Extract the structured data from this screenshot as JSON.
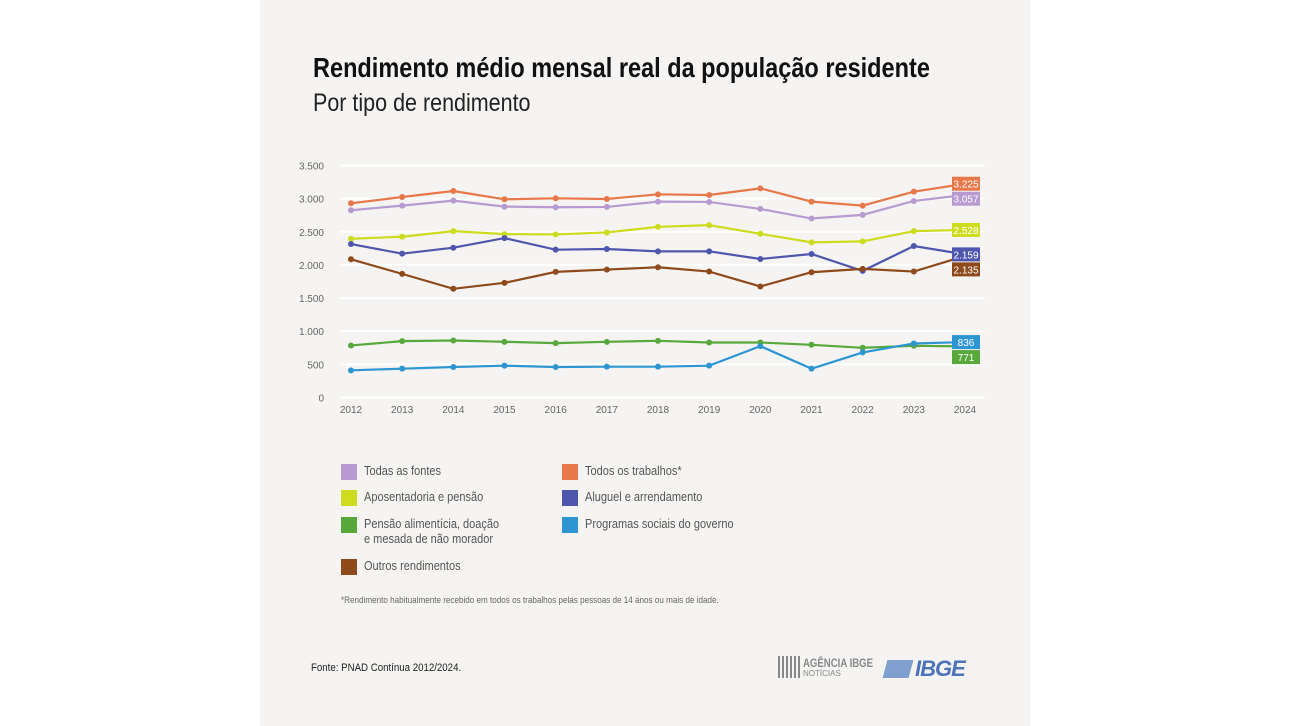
{
  "chart_data": {
    "type": "line",
    "title": "Rendimento médio mensal real da população residente",
    "subtitle": "Por tipo de rendimento",
    "xlabel": "",
    "ylabel": "",
    "x": [
      "2012",
      "2013",
      "2014",
      "2015",
      "2016",
      "2017",
      "2018",
      "2019",
      "2020",
      "2021",
      "2022",
      "2023",
      "2024"
    ],
    "ylim": [
      0,
      3500
    ],
    "yticks": [
      0,
      500,
      1000,
      1500,
      2000,
      2500,
      3000,
      3500
    ],
    "ytick_labels": [
      "0",
      "500",
      "1.000",
      "1.500",
      "2.000",
      "2.500",
      "3.000",
      "3.500"
    ],
    "grid": true,
    "legend_position": "bottom",
    "series": [
      {
        "name": "Todas as fontes",
        "color": "#b79bd0",
        "values": [
          2825,
          2895,
          2970,
          2880,
          2870,
          2875,
          2955,
          2950,
          2845,
          2700,
          2755,
          2965,
          3057
        ],
        "end_label": "3.057"
      },
      {
        "name": "Todos os trabalhos*",
        "color": "#e8784a",
        "values": [
          2930,
          3025,
          3115,
          2990,
          3005,
          2995,
          3065,
          3055,
          3155,
          2955,
          2895,
          3105,
          3225
        ],
        "end_label": "3.225"
      },
      {
        "name": "Aposentadoria e pensão",
        "color": "#cddc1e",
        "values": [
          2395,
          2425,
          2510,
          2465,
          2460,
          2490,
          2575,
          2600,
          2470,
          2340,
          2355,
          2510,
          2528
        ],
        "end_label": "2.528"
      },
      {
        "name": "Aluguel e arrendamento",
        "color": "#4e57ad",
        "values": [
          2315,
          2170,
          2260,
          2405,
          2230,
          2240,
          2205,
          2205,
          2090,
          2165,
          1910,
          2285,
          2159
        ],
        "end_label": "2.159"
      },
      {
        "name": "Pensão alimentícia, doação e mesada de não morador",
        "color": "#58a83c",
        "values": [
          785,
          850,
          860,
          840,
          820,
          840,
          855,
          830,
          830,
          795,
          750,
          780,
          771
        ],
        "end_label": "771"
      },
      {
        "name": "Programas sociais do governo",
        "color": "#2d96d2",
        "values": [
          410,
          435,
          460,
          480,
          460,
          465,
          465,
          480,
          775,
          435,
          680,
          815,
          836
        ],
        "end_label": "836"
      },
      {
        "name": "Outros rendimentos",
        "color": "#8f4a1c",
        "values": [
          2085,
          1865,
          1640,
          1730,
          1895,
          1930,
          1965,
          1900,
          1675,
          1890,
          1940,
          1900,
          2135
        ],
        "end_label": "2.135"
      }
    ]
  },
  "legend": [
    {
      "label": "Todas as fontes",
      "color": "#b79bd0"
    },
    {
      "label": "Todos os trabalhos*",
      "color": "#e8784a"
    },
    {
      "label": "Aposentadoria e pensão",
      "color": "#cddc1e"
    },
    {
      "label": "Aluguel e arrendamento",
      "color": "#4e57ad"
    },
    {
      "label": "Pensão alimentícia, doação",
      "label2": "e mesada de não morador",
      "color": "#58a83c"
    },
    {
      "label": "Programas sociais do governo",
      "color": "#2d96d2"
    },
    {
      "label": "Outros rendimentos",
      "color": "#8f4a1c"
    }
  ],
  "footnote": "*Rendimento habitualmente recebido em todos os trabalhos pelas pessoas de 14 anos ou mais de idade.",
  "source": "Fonte: PNAD Contínua 2012/2024.",
  "logos": {
    "agencia": "AGÊNCIA IBGE",
    "agencia_sub": "NOTÍCIAS",
    "ibge": "IBGE"
  }
}
